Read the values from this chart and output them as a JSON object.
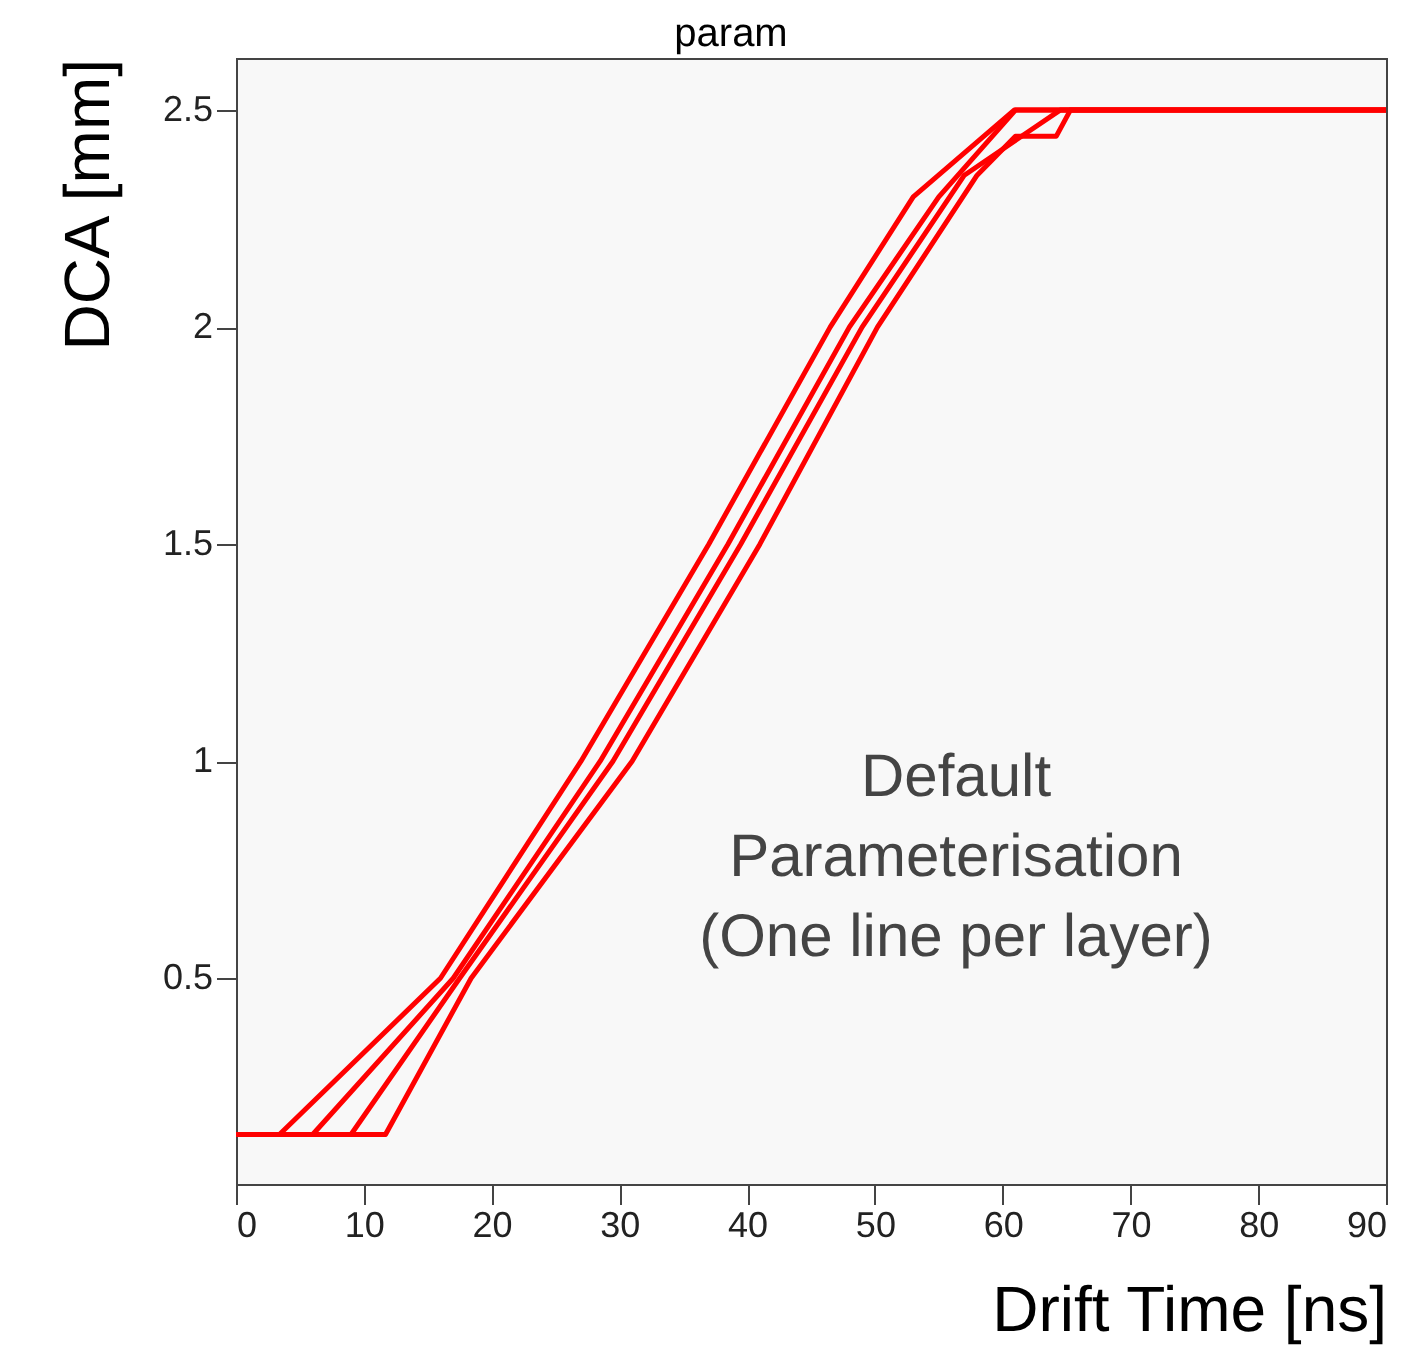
{
  "chart_data": {
    "type": "line",
    "title": "param",
    "xlabel": "Drift Time [ns]",
    "ylabel": "DCA [mm]",
    "annotations": [
      "Default\nParameterisation\n(One line per layer)"
    ],
    "xlim": [
      0,
      90
    ],
    "ylim": [
      0.026,
      2.62
    ],
    "xticks": [
      0,
      10,
      20,
      30,
      40,
      50,
      60,
      70,
      80,
      90
    ],
    "yticks": [
      0.5,
      1,
      1.5,
      2,
      2.5
    ],
    "grid": false,
    "legend": false,
    "series": [
      {
        "color": "#ff0000",
        "x": [
          0,
          3.4,
          16,
          27,
          37,
          46.5,
          53,
          60.9,
          90
        ],
        "values": [
          0.14,
          0.14,
          0.5,
          1.0,
          1.5,
          2.0,
          2.3,
          2.5,
          2.5
        ]
      },
      {
        "color": "#ff0000",
        "x": [
          0,
          6,
          17,
          28.5,
          38.5,
          48,
          55,
          61,
          90
        ],
        "values": [
          0.14,
          0.14,
          0.5,
          1.0,
          1.5,
          2.0,
          2.3,
          2.5,
          2.5
        ]
      },
      {
        "color": "#ff0000",
        "x": [
          0,
          9,
          17.5,
          29.5,
          39.5,
          49,
          57,
          62,
          64.5,
          90
        ],
        "values": [
          0.14,
          0.14,
          0.5,
          1.0,
          1.5,
          2.0,
          2.35,
          2.45,
          2.5,
          2.5
        ]
      },
      {
        "color": "#ff0000",
        "x": [
          0,
          11.7,
          18.4,
          31,
          41,
          50.2,
          58,
          61,
          64.2,
          65.3,
          90
        ],
        "values": [
          0.14,
          0.14,
          0.5,
          1.0,
          1.5,
          2.0,
          2.35,
          2.44,
          2.44,
          2.5,
          2.5
        ]
      }
    ]
  }
}
